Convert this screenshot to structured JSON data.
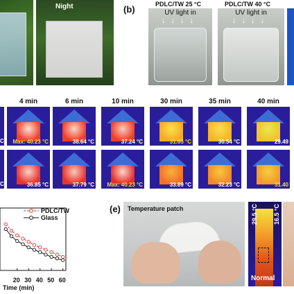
{
  "panel_a": {
    "night_label": "Night"
  },
  "panel_b": {
    "label": "(b)",
    "captions": [
      "PDLC/TW 25 °C",
      "PDLC/TW 40 °C"
    ],
    "uv_text": "UV light in"
  },
  "panel_c": {
    "times": [
      "4 min",
      "6 min",
      "10 min",
      "30 min",
      "35 min",
      "40 min"
    ],
    "row1": [
      {
        "value": "Max: 40.23 °C",
        "max": true
      },
      {
        "value": "38.64 °C",
        "max": false
      },
      {
        "value": "37.24 °C",
        "max": false
      },
      {
        "value": "31.65 °C",
        "max": true
      },
      {
        "value": "30.54 °C",
        "max": false
      },
      {
        "value": "29.49",
        "max": false
      }
    ],
    "row2": [
      {
        "value": "36.85 °C",
        "max": false
      },
      {
        "value": "37.79 °C",
        "max": false
      },
      {
        "value": "Max: 40.23 °C",
        "max": true
      },
      {
        "value": "33.89 °C",
        "max": false
      },
      {
        "value": "32.23 °C",
        "max": false
      },
      {
        "value": "31.40",
        "max": true
      }
    ],
    "edge_text": "C"
  },
  "panel_d": {
    "chart_data": {
      "type": "line",
      "xlabel": "Time (min)",
      "x_ticks": [
        "20",
        "30",
        "40",
        "50",
        "60"
      ],
      "series": [
        {
          "name": "PDLC/TW",
          "color": "#e03030",
          "marker": "circle-open",
          "style": "dashed",
          "x": [
            10,
            15,
            20,
            25,
            30,
            35,
            40,
            45,
            50,
            55,
            60
          ],
          "y": [
            0.78,
            0.7,
            0.64,
            0.6,
            0.56,
            0.52,
            0.49,
            0.46,
            0.43,
            0.4,
            0.37
          ]
        },
        {
          "name": "Glass",
          "color": "#111111",
          "marker": "circle-open",
          "style": "solid",
          "x": [
            10,
            15,
            20,
            25,
            30,
            35,
            40,
            45,
            50,
            55,
            60
          ],
          "y": [
            0.72,
            0.63,
            0.57,
            0.53,
            0.49,
            0.46,
            0.43,
            0.4,
            0.37,
            0.35,
            0.33
          ]
        }
      ],
      "xlim": [
        5,
        62
      ],
      "ylim": [
        0.2,
        0.95
      ]
    }
  },
  "panel_e": {
    "label": "(e)",
    "patch_title": "Temperature patch",
    "scale_high": "29.5 °C",
    "scale_low": "16.5 °C",
    "normal_label": "Normal"
  }
}
